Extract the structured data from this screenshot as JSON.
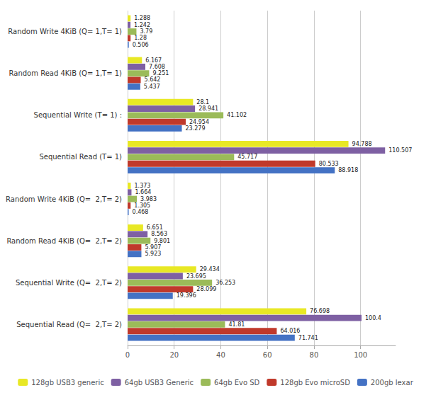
{
  "chart_data": {
    "type": "bar",
    "orientation": "horizontal",
    "categories": [
      "Random Write 4KiB (Q= 1,T= 1)",
      "Random Read 4KiB (Q= 1,T= 1)",
      "Sequential Write (T= 1) :",
      "Sequential Read (T= 1)",
      "Random Write 4KiB (Q=  2,T= 2)",
      "Random Read 4KiB (Q=  2,T= 2)",
      "Sequential Write (Q=  2,T= 2)",
      "Sequential Read (Q=  2,T= 2)"
    ],
    "series": [
      {
        "name": "128gb USB3 generic",
        "color": "#e8e825",
        "values": [
          1.288,
          6.167,
          28.1,
          94.788,
          1.373,
          6.651,
          29.434,
          76.698
        ]
      },
      {
        "name": "64gb USB3 Generic",
        "color": "#7e60a3",
        "values": [
          1.242,
          7.608,
          28.941,
          110.507,
          1.664,
          8.563,
          23.695,
          100.4
        ]
      },
      {
        "name": "64gb Evo SD",
        "color": "#9bbb59",
        "values": [
          3.79,
          9.251,
          41.102,
          45.717,
          3.983,
          9.801,
          36.253,
          41.81
        ]
      },
      {
        "name": "128gb Evo microSD",
        "color": "#c0392b",
        "values": [
          1.28,
          5.642,
          24.954,
          80.533,
          1.305,
          5.907,
          28.099,
          64.016
        ]
      },
      {
        "name": "200gb lexar",
        "color": "#4472c4",
        "values": [
          0.506,
          5.437,
          23.279,
          88.918,
          0.468,
          5.923,
          19.396,
          71.741
        ]
      }
    ],
    "xlim": [
      0,
      115
    ],
    "xticks": [
      0,
      20,
      40,
      60,
      80,
      100
    ],
    "grid": true,
    "data_labels": true,
    "legend": "bottom"
  }
}
